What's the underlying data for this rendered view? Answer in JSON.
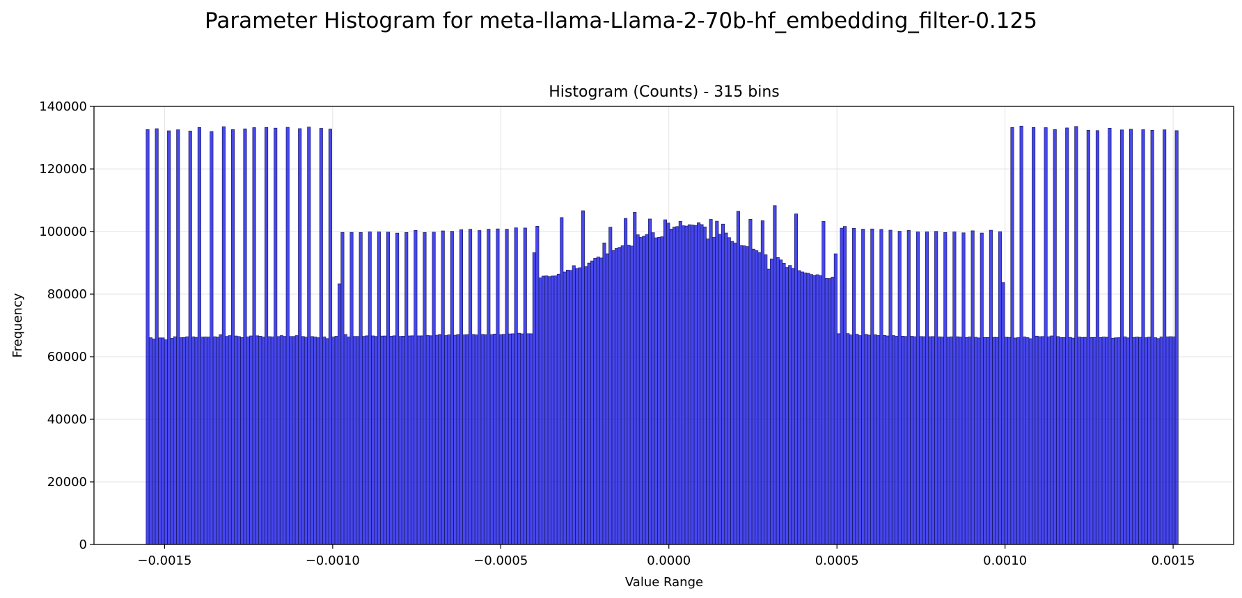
{
  "chart_data": {
    "type": "bar",
    "suptitle": "Parameter Histogram for meta-llama-Llama-2-70b-hf_embedding_filter-0.125",
    "title": "Histogram (Counts) - 315 bins",
    "xlabel": "Value Range",
    "ylabel": "Frequency",
    "bins": 315,
    "xlim": [
      -0.00171,
      0.00168
    ],
    "ylim": [
      0,
      140000
    ],
    "x_range": [
      -0.001555,
      0.001515
    ],
    "grid": true,
    "bar_color": "#0000e6",
    "bar_edge_color": "#1a1a5e",
    "x_ticks": [
      {
        "value": -0.0015,
        "label": "−0.0015"
      },
      {
        "value": -0.001,
        "label": "−0.0010"
      },
      {
        "value": -0.0005,
        "label": "−0.0005"
      },
      {
        "value": 0.0,
        "label": "0.0000"
      },
      {
        "value": 0.0005,
        "label": "0.0005"
      },
      {
        "value": 0.001,
        "label": "0.0010"
      },
      {
        "value": 0.0015,
        "label": "0.0015"
      }
    ],
    "y_ticks": [
      {
        "value": 0,
        "label": "0"
      },
      {
        "value": 20000,
        "label": "20000"
      },
      {
        "value": 40000,
        "label": "40000"
      },
      {
        "value": 60000,
        "label": "60000"
      },
      {
        "value": 80000,
        "label": "80000"
      },
      {
        "value": 100000,
        "label": "100000"
      },
      {
        "value": 120000,
        "label": "120000"
      },
      {
        "value": 140000,
        "label": "140000"
      }
    ],
    "counts": [
      132608,
      66079,
      65689,
      132880,
      66040,
      66034,
      65412,
      132208,
      65899,
      66393,
      132528,
      66102,
      66176,
      66383,
      132142,
      66346,
      66204,
      133270,
      66275,
      66300,
      66273,
      131974,
      66384,
      66254,
      67035,
      133518,
      66506,
      66751,
      132581,
      66645,
      66470,
      66123,
      132830,
      66335,
      66658,
      133224,
      66702,
      66574,
      66279,
      133293,
      66427,
      66322,
      133068,
      66466,
      66756,
      66538,
      133321,
      66480,
      66493,
      66766,
      132904,
      66477,
      66267,
      133396,
      66454,
      66294,
      66085,
      132997,
      66319,
      65818,
      132763,
      66303,
      66560,
      83320,
      99730,
      67121,
      66296,
      99737,
      66508,
      66495,
      99708,
      66530,
      66696,
      99918,
      66675,
      66505,
      99905,
      66628,
      66646,
      99822,
      66571,
      66699,
      99520,
      66520,
      66591,
      99703,
      66664,
      66703,
      100385,
      66675,
      66683,
      99704,
      66786,
      66710,
      99810,
      66881,
      67111,
      100220,
      66777,
      66993,
      100084,
      66895,
      67102,
      100610,
      67006,
      67072,
      100743,
      67117,
      66983,
      100328,
      67145,
      67033,
      100773,
      67086,
      67248,
      100853,
      67069,
      67176,
      100760,
      67302,
      67349,
      101190,
      67519,
      67329,
      101139,
      67367,
      67348,
      93262,
      101690,
      85204,
      85778,
      85837,
      85604,
      85805,
      85834,
      86391,
      104479,
      87105,
      87698,
      87593,
      89120,
      88207,
      88446,
      106658,
      88779,
      89965,
      90632,
      91459,
      91863,
      91566,
      96376,
      92895,
      101406,
      93957,
      94604,
      94942,
      95485,
      104210,
      95667,
      95369,
      106133,
      98975,
      98119,
      98556,
      99087,
      104014,
      99649,
      97997,
      98137,
      98341,
      103765,
      102708,
      100799,
      101462,
      101602,
      103286,
      101854,
      101765,
      102197,
      102081,
      101950,
      102840,
      102233,
      101492,
      97653,
      103892,
      98124,
      103315,
      99139,
      102394,
      99546,
      98060,
      96876,
      96343,
      106500,
      95570,
      95440,
      95191,
      103929,
      94402,
      93905,
      93301,
      103470,
      92620,
      87998,
      91266,
      108283,
      91704,
      90936,
      89924,
      88542,
      89181,
      88258,
      105638,
      87515,
      87113,
      86788,
      86658,
      86291,
      85950,
      86226,
      85895,
      103273,
      85009,
      84987,
      85469,
      92887,
      67366,
      101088,
      101646,
      67404,
      66964,
      101050,
      67201,
      66765,
      100781,
      67150,
      66915,
      100837,
      67021,
      66779,
      100703,
      66834,
      66655,
      100443,
      66761,
      66564,
      100097,
      66581,
      66487,
      100356,
      66555,
      66406,
      99919,
      66464,
      66417,
      99921,
      66406,
      66454,
      100062,
      66343,
      66292,
      99695,
      66256,
      66343,
      99909,
      66377,
      66267,
      99597,
      66150,
      66319,
      100245,
      66224,
      66026,
      99533,
      66158,
      66156,
      100419,
      66219,
      66192,
      99971,
      83672,
      66228,
      66189,
      133271,
      65999,
      66108,
      133713,
      66322,
      66114,
      65775,
      133260,
      66602,
      66420,
      66463,
      133221,
      66387,
      66663,
      132601,
      66467,
      66122,
      66160,
      133125,
      66195,
      65977,
      133591,
      66279,
      66188,
      66218,
      132359,
      66154,
      66190,
      132266,
      66149,
      66284,
      66232,
      133035,
      65945,
      66052,
      66101,
      132493,
      66365,
      66049,
      132708,
      66195,
      66270,
      66207,
      132564,
      66103,
      66262,
      132371,
      66091,
      65827,
      66301,
      132520,
      66340,
      66418,
      66345,
      132256
    ]
  }
}
